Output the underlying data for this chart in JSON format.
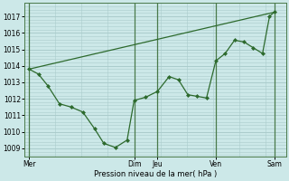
{
  "background_color": "#cce8e8",
  "grid_color": "#aacccc",
  "line_color": "#2d6a2d",
  "marker_color": "#2d6a2d",
  "xlabel": "Pression niveau de la mer( hPa )",
  "ylim": [
    1008.5,
    1017.8
  ],
  "yticks": [
    1009,
    1010,
    1011,
    1012,
    1013,
    1014,
    1015,
    1016,
    1017
  ],
  "x_day_labels": [
    "Mer",
    "Dim",
    "Jeu",
    "Ven",
    "Sam"
  ],
  "x_day_positions": [
    0,
    4.5,
    5.5,
    8.0,
    10.5
  ],
  "xlim": [
    -0.2,
    11.0
  ],
  "series1_x": [
    0,
    10.5
  ],
  "series1_y": [
    1013.8,
    1017.25
  ],
  "series2_x": [
    0,
    0.4,
    0.8,
    1.3,
    1.8,
    2.3,
    2.8,
    3.2,
    3.7,
    4.2,
    4.5,
    5.0,
    5.5,
    6.0,
    6.4,
    6.8,
    7.2,
    7.6,
    8.0,
    8.4,
    8.8,
    9.2,
    9.6,
    10.0,
    10.3,
    10.5
  ],
  "series2_y": [
    1013.8,
    1013.5,
    1012.8,
    1011.7,
    1011.5,
    1011.2,
    1010.2,
    1009.3,
    1009.05,
    1009.5,
    1011.9,
    1012.1,
    1012.45,
    1013.35,
    1013.15,
    1012.25,
    1012.15,
    1012.05,
    1014.3,
    1014.75,
    1015.55,
    1015.45,
    1015.1,
    1014.75,
    1017.0,
    1017.25
  ]
}
